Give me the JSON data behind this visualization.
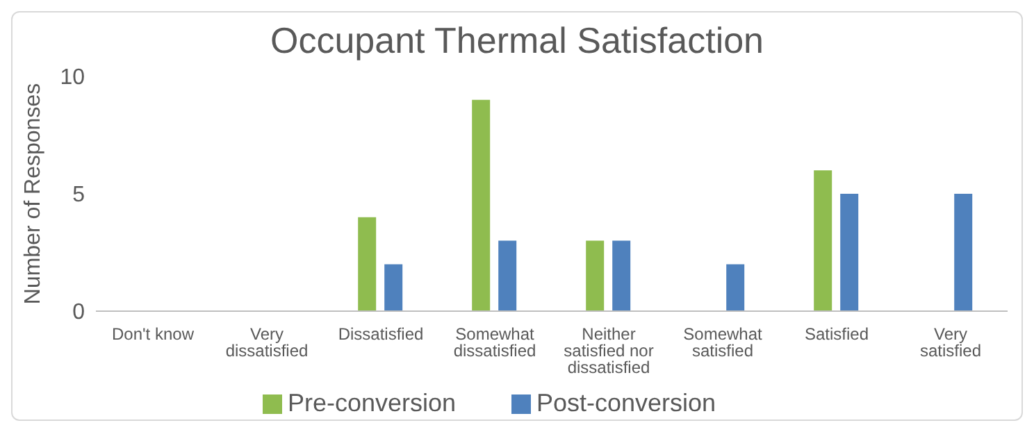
{
  "chart_data": {
    "type": "bar",
    "title": "Occupant Thermal Satisfaction",
    "ylabel": "Number of Responses",
    "categories": [
      "Don't know",
      "Very dissatisfied",
      "Dissatisfied",
      "Somewhat dissatisfied",
      "Neither satisfied nor dissatisfied",
      "Somewhat satisfied",
      "Satisfied",
      "Very satisfied"
    ],
    "series": [
      {
        "name": "Pre-conversion",
        "color": "#8fbc4f",
        "values": [
          0,
          0,
          4,
          9,
          3,
          0,
          6,
          0
        ]
      },
      {
        "name": "Post-conversion",
        "color": "#4f81bd",
        "values": [
          0,
          0,
          2,
          3,
          3,
          2,
          5,
          5
        ]
      }
    ],
    "ylim": [
      0,
      10
    ],
    "yticks": [
      0,
      5,
      10
    ],
    "legend": "bottom"
  }
}
